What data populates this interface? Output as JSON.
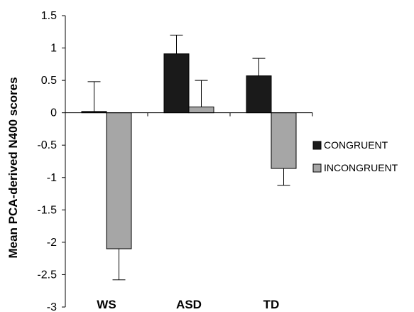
{
  "chart_data": {
    "type": "bar",
    "title": "",
    "xlabel": "",
    "ylabel": "Mean PCA-derived N400 scores",
    "categories": [
      "WS",
      "ASD",
      "TD"
    ],
    "ylim": [
      -3,
      1.5
    ],
    "yticks": [
      1.5,
      1,
      0.5,
      0,
      -0.5,
      -1,
      -1.5,
      -2,
      -2.5,
      -3
    ],
    "ytick_labels": [
      "1.5",
      "1",
      "0.5",
      "0",
      "-0.5",
      "-1",
      "-1.5",
      "-2",
      "-2.5",
      "-3"
    ],
    "grid": false,
    "legend_position": "right",
    "series": [
      {
        "name": "CONGRUENT",
        "color": "#1a1a1a",
        "values": [
          0.02,
          0.91,
          0.57
        ],
        "errors": [
          0.46,
          0.29,
          0.27
        ]
      },
      {
        "name": "INCONGRUENT",
        "color": "#a6a6a6",
        "values": [
          -2.1,
          0.09,
          -0.86
        ],
        "errors": [
          0.48,
          0.41,
          0.26
        ]
      }
    ]
  }
}
